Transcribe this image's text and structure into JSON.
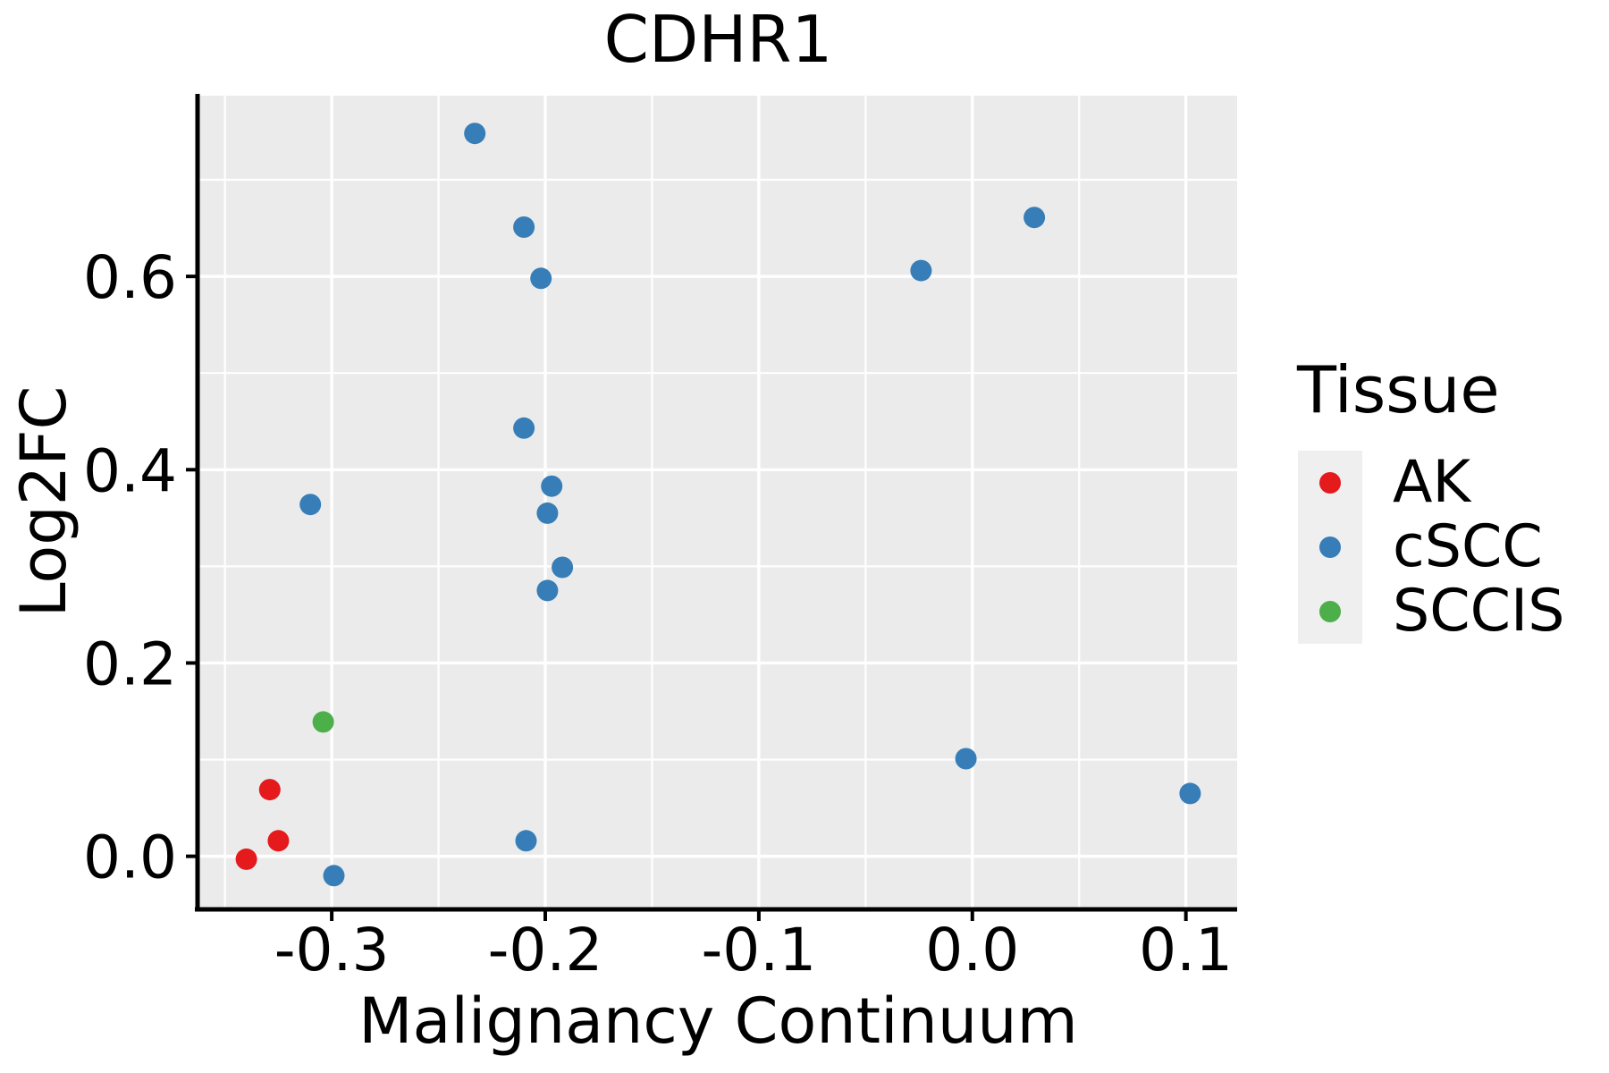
{
  "chart_data": {
    "type": "scatter",
    "title": "CDHR1",
    "xlabel": "Malignancy Continuum",
    "ylabel": "Log2FC",
    "xlim": [
      -0.362,
      0.124
    ],
    "ylim": [
      -0.054,
      0.787
    ],
    "x_ticks": [
      -0.3,
      -0.2,
      -0.1,
      0.0,
      0.1
    ],
    "x_tick_labels": [
      "-0.3",
      "-0.2",
      "-0.1",
      "0.0",
      "0.1"
    ],
    "y_ticks": [
      0.0,
      0.2,
      0.4,
      0.6
    ],
    "y_tick_labels": [
      "0.0",
      "0.2",
      "0.4",
      "0.6"
    ],
    "x_minor_ticks": [
      -0.35,
      -0.25,
      -0.15,
      -0.05,
      0.05
    ],
    "y_minor_ticks": [
      0.1,
      0.3,
      0.5,
      0.7
    ],
    "grid": true,
    "legend_position": "right",
    "legend_title": "Tissue",
    "series": [
      {
        "name": "AK",
        "color": "#e41a1c",
        "points": [
          [
            -0.34,
            -0.003
          ],
          [
            -0.329,
            0.069
          ],
          [
            -0.325,
            0.016
          ]
        ]
      },
      {
        "name": "cSCC",
        "color": "#377eb8",
        "points": [
          [
            -0.31,
            0.364
          ],
          [
            -0.299,
            -0.02
          ],
          [
            -0.233,
            0.748
          ],
          [
            -0.21,
            0.651
          ],
          [
            -0.21,
            0.443
          ],
          [
            -0.209,
            0.016
          ],
          [
            -0.202,
            0.598
          ],
          [
            -0.199,
            0.355
          ],
          [
            -0.199,
            0.275
          ],
          [
            -0.197,
            0.383
          ],
          [
            -0.192,
            0.299
          ],
          [
            -0.024,
            0.606
          ],
          [
            -0.003,
            0.101
          ],
          [
            0.029,
            0.661
          ],
          [
            0.102,
            0.065
          ]
        ]
      },
      {
        "name": "SCCIS",
        "color": "#4daf4a",
        "points": [
          [
            -0.304,
            0.139
          ]
        ]
      }
    ],
    "panel_background": "#ebebeb",
    "grid_color": "#ffffff",
    "axis_color": "#000000",
    "legend_key_background": "#efefef"
  }
}
